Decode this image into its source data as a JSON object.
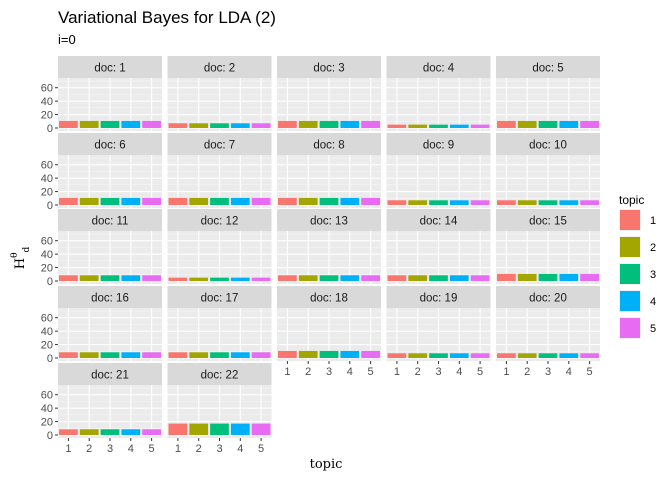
{
  "chart_data": {
    "type": "bar",
    "title": "Variational Bayes for LDA (2)",
    "subtitle": "i=0",
    "xlabel": "topic",
    "ylabel": "Hθd",
    "ylabel_main": "H",
    "ylabel_sup": "θ",
    "ylabel_sub": "d",
    "ylim": [
      0,
      70
    ],
    "y_ticks": [
      0,
      20,
      40,
      60
    ],
    "categories": [
      1,
      2,
      3,
      4,
      5
    ],
    "legend": {
      "title": "topic",
      "position": "right",
      "labels": [
        "1",
        "2",
        "3",
        "4",
        "5"
      ],
      "colors": [
        "#F8766D",
        "#A3A500",
        "#00BF7D",
        "#00B0F6",
        "#E76BF3"
      ]
    },
    "facets": [
      {
        "label": "doc: 1",
        "values": [
          10.5,
          10.5,
          10.5,
          10.5,
          10.5
        ]
      },
      {
        "label": "doc: 2",
        "values": [
          7,
          7,
          7,
          7,
          7
        ]
      },
      {
        "label": "doc: 3",
        "values": [
          10.5,
          10.5,
          10.5,
          10.5,
          10.5
        ]
      },
      {
        "label": "doc: 4",
        "values": [
          5,
          5,
          5,
          5,
          5
        ]
      },
      {
        "label": "doc: 5",
        "values": [
          10.5,
          10.5,
          10.5,
          10.5,
          10.5
        ]
      },
      {
        "label": "doc: 6",
        "values": [
          10.5,
          10.5,
          10.5,
          10.5,
          10.5
        ]
      },
      {
        "label": "doc: 7",
        "values": [
          10.5,
          10.5,
          10.5,
          10.5,
          10.5
        ]
      },
      {
        "label": "doc: 8",
        "values": [
          10.5,
          10.5,
          10.5,
          10.5,
          10.5
        ]
      },
      {
        "label": "doc: 9",
        "values": [
          7,
          7,
          7,
          7,
          7
        ]
      },
      {
        "label": "doc: 10",
        "values": [
          7,
          7,
          7,
          7,
          7
        ]
      },
      {
        "label": "doc: 11",
        "values": [
          8.5,
          8.5,
          8.5,
          8.5,
          8.5
        ]
      },
      {
        "label": "doc: 12",
        "values": [
          5,
          5,
          5,
          5,
          5
        ]
      },
      {
        "label": "doc: 13",
        "values": [
          8.5,
          8.5,
          8.5,
          8.5,
          8.5
        ]
      },
      {
        "label": "doc: 14",
        "values": [
          8.5,
          8.5,
          8.5,
          8.5,
          8.5
        ]
      },
      {
        "label": "doc: 15",
        "values": [
          10.5,
          10.5,
          10.5,
          10.5,
          10.5
        ]
      },
      {
        "label": "doc: 16",
        "values": [
          8.5,
          8.5,
          8.5,
          8.5,
          8.5
        ]
      },
      {
        "label": "doc: 17",
        "values": [
          8.5,
          8.5,
          8.5,
          8.5,
          8.5
        ]
      },
      {
        "label": "doc: 18",
        "values": [
          10.5,
          10.5,
          10.5,
          10.5,
          10.5
        ]
      },
      {
        "label": "doc: 19",
        "values": [
          7,
          7,
          7,
          7,
          7
        ]
      },
      {
        "label": "doc: 20",
        "values": [
          7,
          7,
          7,
          7,
          7
        ]
      },
      {
        "label": "doc: 21",
        "values": [
          8.5,
          8.5,
          8.5,
          8.5,
          8.5
        ]
      },
      {
        "label": "doc: 22",
        "values": [
          17,
          17,
          17,
          17,
          17
        ]
      }
    ]
  }
}
